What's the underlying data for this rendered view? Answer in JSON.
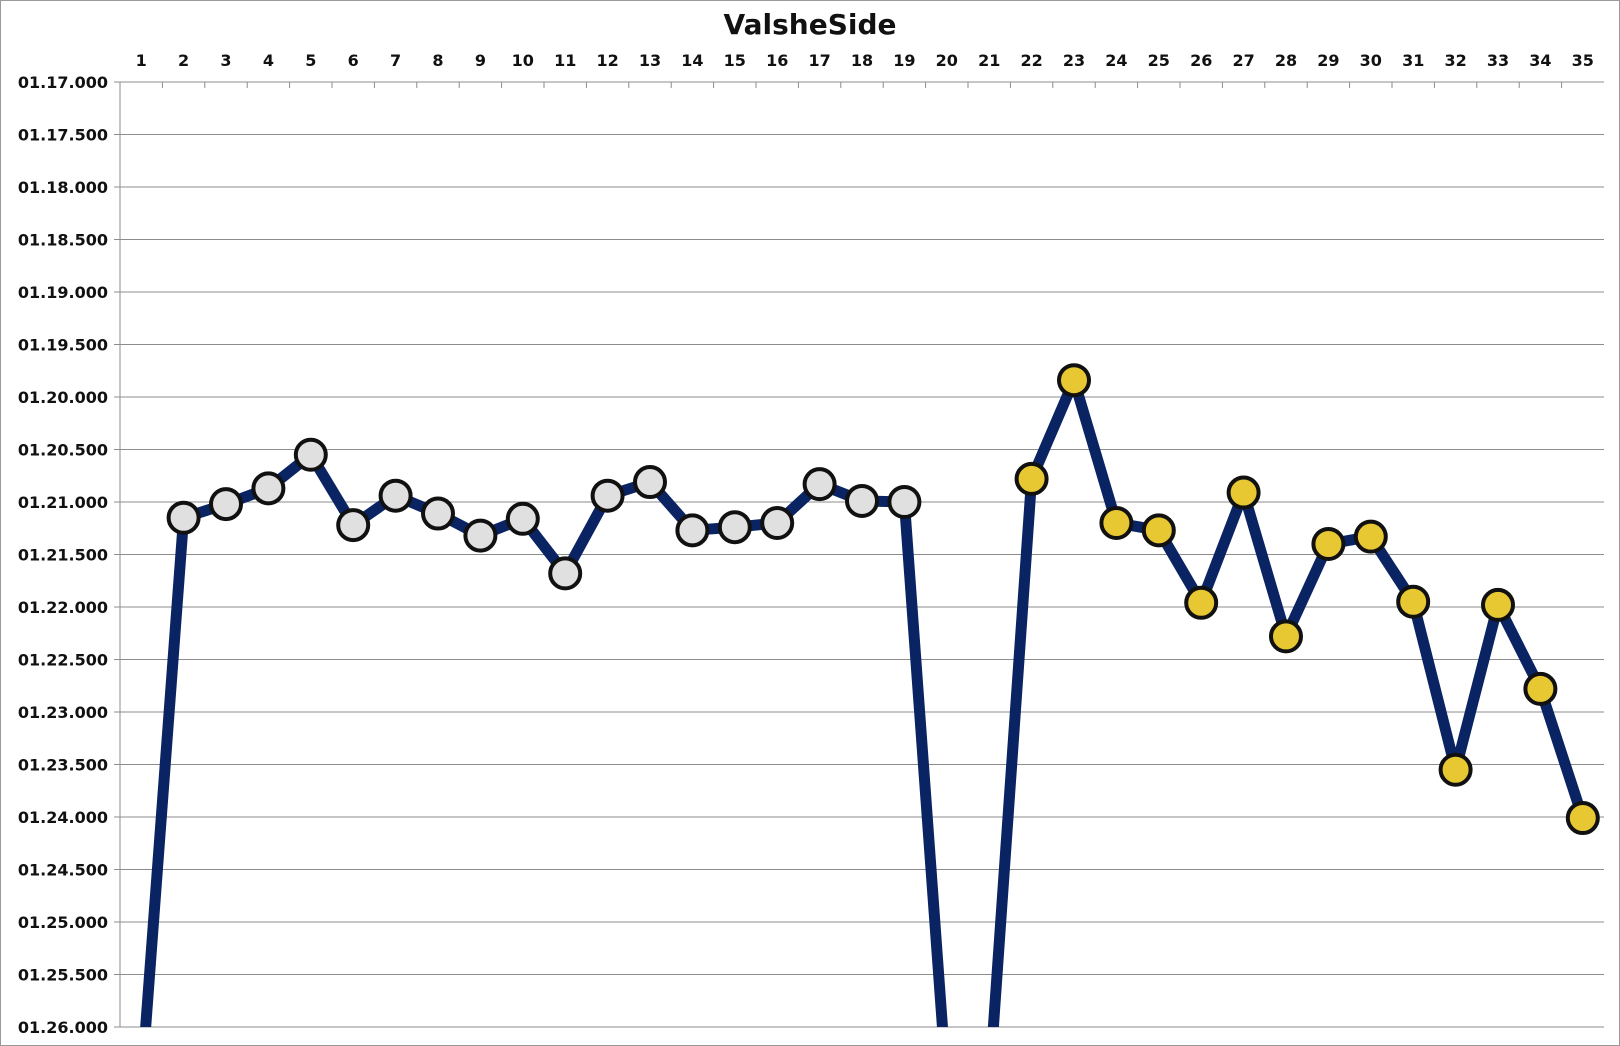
{
  "chart_data": {
    "type": "line",
    "title": "ValsheSide",
    "xlabel": "",
    "ylabel": "",
    "x_axis_position": "top",
    "y_axis_inverted": true,
    "grid": true,
    "legend": "none",
    "categories": [
      "1",
      "2",
      "3",
      "4",
      "5",
      "6",
      "7",
      "8",
      "9",
      "10",
      "11",
      "12",
      "13",
      "14",
      "15",
      "16",
      "17",
      "18",
      "19",
      "20",
      "21",
      "22",
      "23",
      "24",
      "25",
      "26",
      "27",
      "28",
      "29",
      "30",
      "31",
      "32",
      "33",
      "34",
      "35"
    ],
    "y_ticks": [
      "01.17.000",
      "01.17.500",
      "01.18.000",
      "01.18.500",
      "01.19.000",
      "01.19.500",
      "01.20.000",
      "01.20.500",
      "01.21.000",
      "01.21.500",
      "01.22.000",
      "01.22.500",
      "01.23.000",
      "01.23.500",
      "01.24.000",
      "01.24.500",
      "01.25.000",
      "01.25.500",
      "01.26.000"
    ],
    "ylim": [
      77.0,
      86.0
    ],
    "line_color": "#0a2463",
    "series": [
      {
        "marker_color": "#e0e0e0",
        "marker_edge": "#111111",
        "points": [
          {
            "x": 1,
            "y": null,
            "below_range": true
          },
          {
            "x": 2,
            "y": 81.15
          },
          {
            "x": 3,
            "y": 81.02
          },
          {
            "x": 4,
            "y": 80.87
          },
          {
            "x": 5,
            "y": 80.55
          },
          {
            "x": 6,
            "y": 81.22
          },
          {
            "x": 7,
            "y": 80.94
          },
          {
            "x": 8,
            "y": 81.11
          },
          {
            "x": 9,
            "y": 81.32
          },
          {
            "x": 10,
            "y": 81.16
          },
          {
            "x": 11,
            "y": 81.68
          },
          {
            "x": 12,
            "y": 80.94
          },
          {
            "x": 13,
            "y": 80.81
          },
          {
            "x": 14,
            "y": 81.27
          },
          {
            "x": 15,
            "y": 81.24
          },
          {
            "x": 16,
            "y": 81.2
          },
          {
            "x": 17,
            "y": 80.83
          },
          {
            "x": 18,
            "y": 80.99
          },
          {
            "x": 19,
            "y": 81.0
          },
          {
            "x": 20,
            "y": null,
            "below_range": true
          }
        ]
      },
      {
        "marker_color": "#e8c832",
        "marker_edge": "#111111",
        "points": [
          {
            "x": 21,
            "y": null,
            "below_range": true
          },
          {
            "x": 22,
            "y": 80.78
          },
          {
            "x": 23,
            "y": 79.84
          },
          {
            "x": 24,
            "y": 81.2
          },
          {
            "x": 25,
            "y": 81.27
          },
          {
            "x": 26,
            "y": 81.96
          },
          {
            "x": 27,
            "y": 80.91
          },
          {
            "x": 28,
            "y": 82.28
          },
          {
            "x": 29,
            "y": 81.4
          },
          {
            "x": 30,
            "y": 81.33
          },
          {
            "x": 31,
            "y": 81.95
          },
          {
            "x": 32,
            "y": 83.55
          },
          {
            "x": 33,
            "y": 81.98
          },
          {
            "x": 34,
            "y": 82.78
          },
          {
            "x": 35,
            "y": 84.01
          }
        ]
      }
    ]
  }
}
